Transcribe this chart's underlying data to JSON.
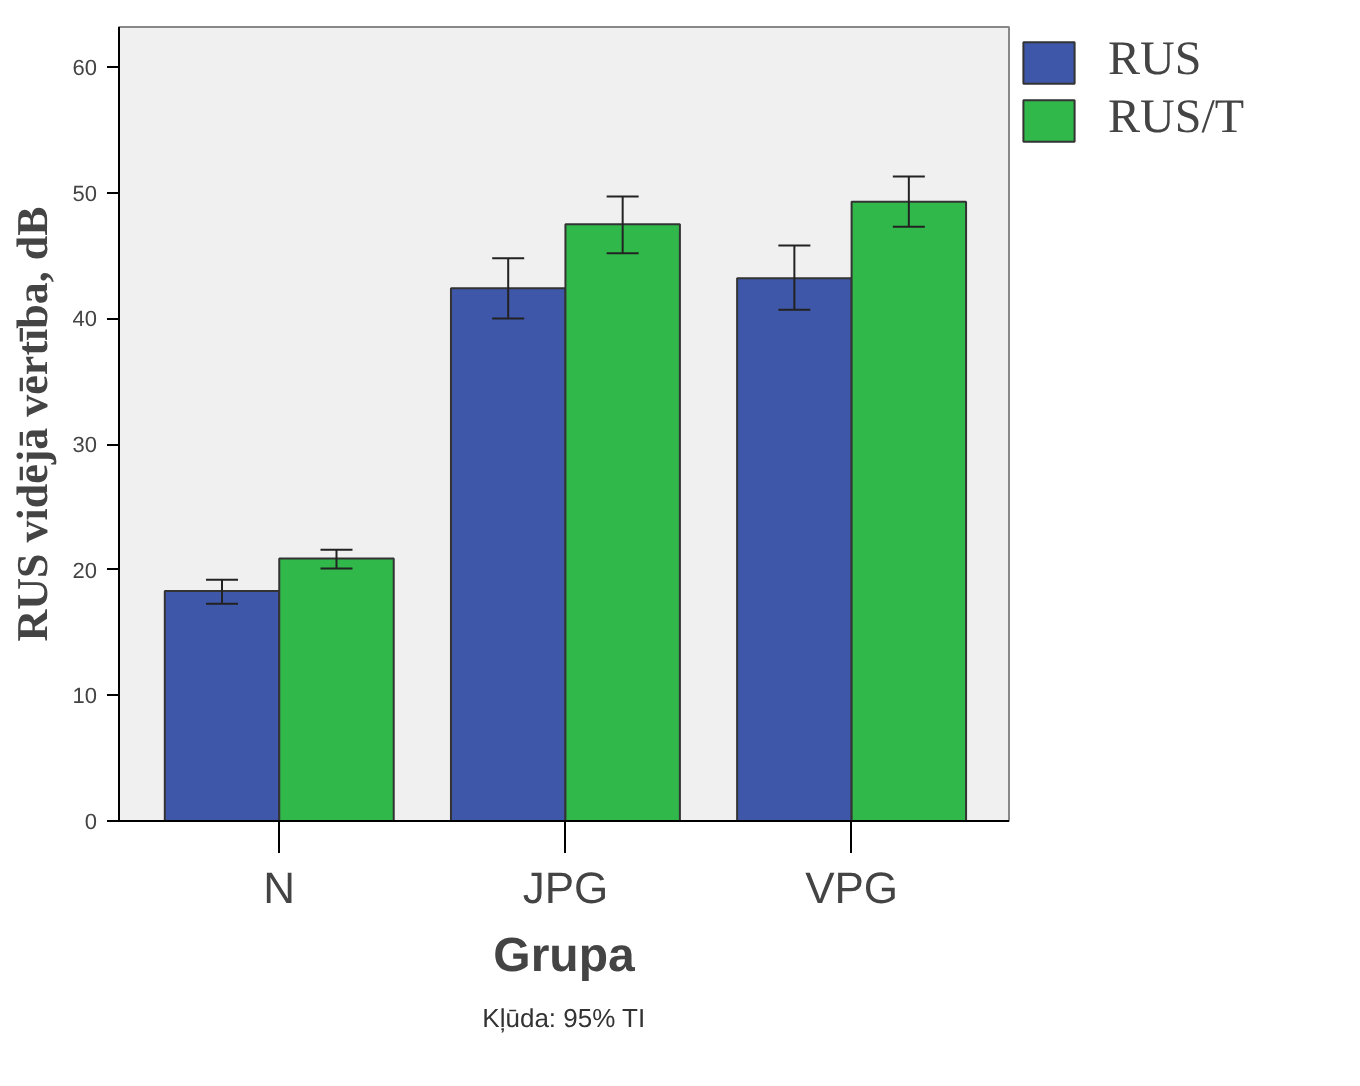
{
  "chart_data": {
    "type": "bar",
    "xlabel": "Grupa",
    "ylabel": "RUS vidējā vērtība, dB",
    "categories": [
      "N",
      "JPG",
      "VPG"
    ],
    "series": [
      {
        "name": "RUS",
        "color": "#3f57a9",
        "values": [
          18.3,
          42.4,
          43.2
        ],
        "errors": [
          [
            17.3,
            19.2
          ],
          [
            40.0,
            44.8
          ],
          [
            40.7,
            45.8
          ]
        ]
      },
      {
        "name": "RUS/T",
        "color": "#30b84a",
        "values": [
          20.9,
          47.5,
          49.3
        ],
        "errors": [
          [
            20.1,
            21.6
          ],
          [
            45.2,
            49.7
          ],
          [
            47.3,
            51.3
          ]
        ]
      }
    ],
    "ylim": [
      0,
      63.2
    ],
    "yticks": [
      0,
      10,
      20,
      30,
      40,
      50,
      60
    ],
    "grid": false,
    "legend": "top right",
    "annotations": [
      "Kļūda: 95% TI"
    ]
  }
}
